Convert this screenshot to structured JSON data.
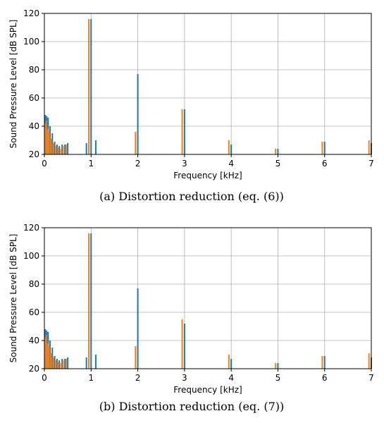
{
  "chart_data": [
    {
      "type": "bar",
      "caption": "(a) Distortion reduction (eq. (6))",
      "xlabel": "Frequency [kHz]",
      "ylabel": "Sound Pressure Level [dB SPL]",
      "xlim": [
        0,
        7
      ],
      "ylim": [
        20,
        120
      ],
      "xticks": [
        "0",
        "1",
        "2",
        "3",
        "4",
        "5",
        "6",
        "7"
      ],
      "yticks": [
        "20",
        "40",
        "60",
        "80",
        "100",
        "120"
      ],
      "grid": true,
      "baseline": 20,
      "series": [
        {
          "color": "#1f77b4",
          "x": [
            0.02,
            0.05,
            0.08,
            0.12,
            0.17,
            0.22,
            0.27,
            0.32,
            0.38,
            0.44,
            0.5,
            0.9,
            1.0,
            1.1,
            2.0,
            3.0,
            4.0,
            5.0,
            6.0,
            7.0
          ],
          "values": [
            48,
            47,
            46,
            40,
            35,
            29,
            27,
            26,
            27,
            27,
            28,
            28,
            116,
            30,
            77,
            52,
            27,
            24,
            29,
            28
          ]
        },
        {
          "color": "#ff7f0e",
          "x": [
            0.01,
            0.04,
            0.07,
            0.1,
            0.14,
            0.19,
            0.24,
            0.29,
            0.34,
            0.4,
            0.47,
            0.95,
            1.95,
            2.95,
            3.95,
            4.95,
            5.95,
            6.95
          ],
          "values": [
            42,
            44,
            38,
            36,
            31,
            28,
            26,
            25,
            24,
            26,
            27,
            116,
            36,
            52,
            30,
            24,
            29,
            30
          ]
        }
      ]
    },
    {
      "type": "bar",
      "caption": "(b) Distortion reduction (eq. (7))",
      "xlabel": "Frequency [kHz]",
      "ylabel": "Sound Pressure Level [dB SPL]",
      "xlim": [
        0,
        7
      ],
      "ylim": [
        20,
        120
      ],
      "xticks": [
        "0",
        "1",
        "2",
        "3",
        "4",
        "5",
        "6",
        "7"
      ],
      "yticks": [
        "20",
        "40",
        "60",
        "80",
        "100",
        "120"
      ],
      "grid": true,
      "baseline": 20,
      "series": [
        {
          "color": "#1f77b4",
          "x": [
            0.02,
            0.05,
            0.08,
            0.12,
            0.17,
            0.22,
            0.27,
            0.32,
            0.38,
            0.44,
            0.5,
            0.9,
            1.0,
            1.1,
            2.0,
            3.0,
            4.0,
            5.0,
            6.0,
            7.0
          ],
          "values": [
            48,
            47,
            46,
            40,
            35,
            29,
            27,
            26,
            27,
            27,
            28,
            28,
            116,
            30,
            77,
            52,
            27,
            24,
            29,
            28
          ]
        },
        {
          "color": "#ff7f0e",
          "x": [
            0.01,
            0.04,
            0.07,
            0.1,
            0.14,
            0.19,
            0.24,
            0.29,
            0.34,
            0.4,
            0.47,
            0.95,
            1.95,
            2.95,
            3.95,
            4.95,
            5.95,
            6.95
          ],
          "values": [
            42,
            44,
            38,
            36,
            31,
            28,
            26,
            25,
            24,
            26,
            27,
            116,
            36,
            55,
            30,
            24,
            29,
            31
          ]
        }
      ]
    }
  ]
}
